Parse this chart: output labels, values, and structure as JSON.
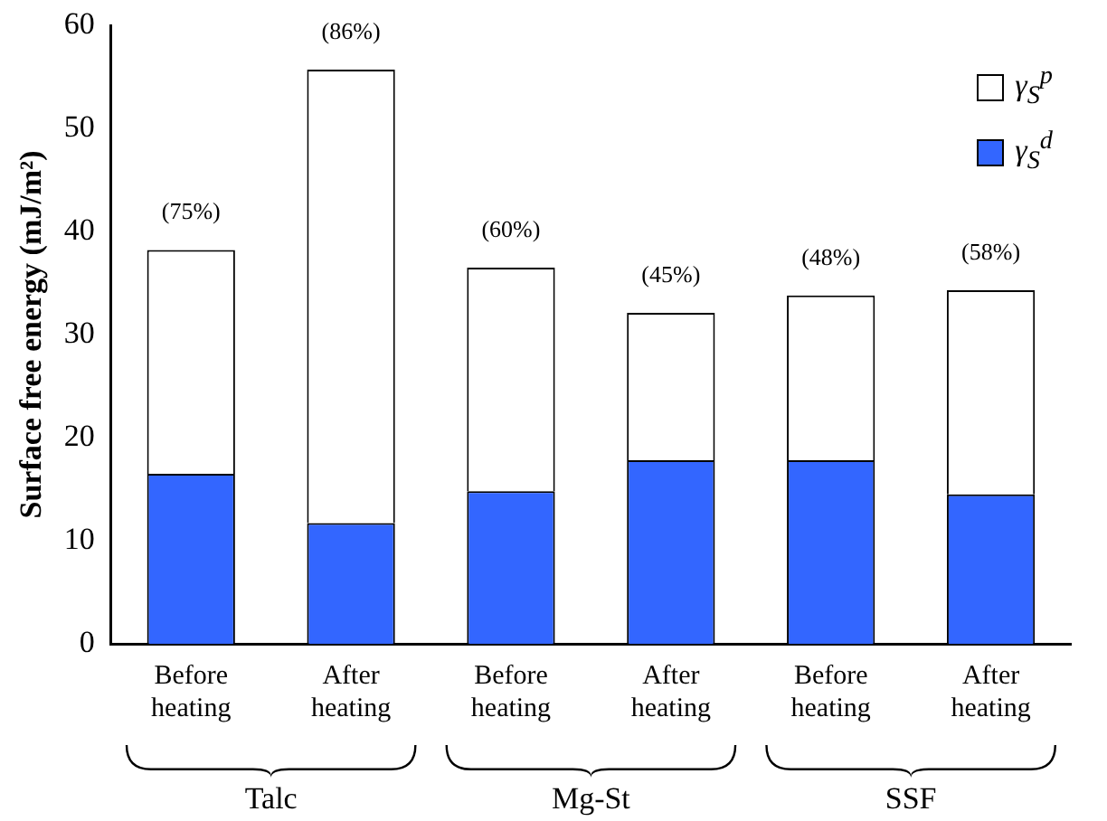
{
  "chart_data": {
    "type": "bar",
    "stacked": true,
    "ylabel": "Surface free energy (mJ/m²)",
    "categories": [
      "Before heating",
      "After heating",
      "Before heating",
      "After heating",
      "Before heating",
      "After heating"
    ],
    "series": [
      {
        "name": "γ$_{S}$$^{d}$",
        "color": "#3366ff",
        "values": [
          16.5,
          11.7,
          14.8,
          17.8,
          17.8,
          14.5
        ]
      },
      {
        "name": "γ$_{S}$$^{p}$",
        "color": "#ffffff",
        "values": [
          21.7,
          44.0,
          21.7,
          14.3,
          16.0,
          19.8
        ]
      }
    ],
    "ylim": [
      0,
      60
    ],
    "yticks": [
      0,
      10,
      20,
      30,
      40,
      50,
      60
    ],
    "grid": false,
    "legend": "top right",
    "annotations": [
      "(75%)",
      "(86%)",
      "(60%)",
      "(45%)",
      "(48%)",
      "(58%)",
      "Talc",
      "Mg-St",
      "SSF"
    ]
  }
}
